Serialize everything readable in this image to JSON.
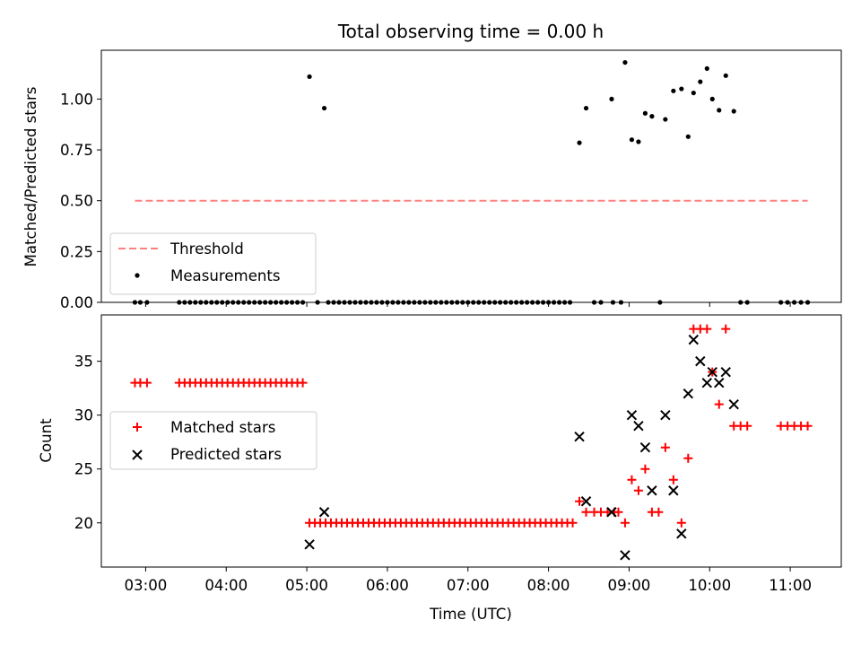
{
  "chart_data": [
    {
      "type": "scatter",
      "title": "Total observing time = 0.00 h",
      "xlabel": "",
      "ylabel": "Matched/Predicted stars",
      "xlim": [
        "02:27",
        "11:38"
      ],
      "ylim": [
        0,
        1.24
      ],
      "ytick_labels": [
        "0.00",
        "0.25",
        "0.50",
        "0.75",
        "1.00"
      ],
      "grid": false,
      "legend": "lower-left",
      "threshold": {
        "name": "Threshold",
        "y": 0.5,
        "x_start": "02:52",
        "x_end": "11:13",
        "color": "#ff8080",
        "style": "dashed"
      },
      "series": [
        {
          "name": "Measurements",
          "color": "#000000",
          "marker": "dot",
          "points": [
            [
              "02:52",
              0
            ],
            [
              "02:56",
              0
            ],
            [
              "03:01",
              0
            ],
            [
              "03:25",
              0
            ],
            [
              "03:29",
              0
            ],
            [
              "03:33",
              0
            ],
            [
              "03:37",
              0
            ],
            [
              "03:41",
              0
            ],
            [
              "03:45",
              0
            ],
            [
              "03:49",
              0
            ],
            [
              "03:53",
              0
            ],
            [
              "03:57",
              0
            ],
            [
              "04:01",
              0
            ],
            [
              "04:05",
              0
            ],
            [
              "04:09",
              0
            ],
            [
              "04:13",
              0
            ],
            [
              "04:17",
              0
            ],
            [
              "04:21",
              0
            ],
            [
              "04:25",
              0
            ],
            [
              "04:29",
              0
            ],
            [
              "04:33",
              0
            ],
            [
              "04:37",
              0
            ],
            [
              "04:41",
              0
            ],
            [
              "04:45",
              0
            ],
            [
              "04:49",
              0
            ],
            [
              "04:53",
              0
            ],
            [
              "04:57",
              0
            ],
            [
              "05:02",
              1.11
            ],
            [
              "05:13",
              0.955
            ],
            [
              "05:08",
              0
            ],
            [
              "05:16",
              0
            ],
            [
              "05:20",
              0
            ],
            [
              "05:24",
              0
            ],
            [
              "05:28",
              0
            ],
            [
              "05:32",
              0
            ],
            [
              "05:36",
              0
            ],
            [
              "05:40",
              0
            ],
            [
              "05:44",
              0
            ],
            [
              "05:48",
              0
            ],
            [
              "05:52",
              0
            ],
            [
              "05:56",
              0
            ],
            [
              "06:00",
              0
            ],
            [
              "06:04",
              0
            ],
            [
              "06:08",
              0
            ],
            [
              "06:12",
              0
            ],
            [
              "06:16",
              0
            ],
            [
              "06:20",
              0
            ],
            [
              "06:24",
              0
            ],
            [
              "06:28",
              0
            ],
            [
              "06:32",
              0
            ],
            [
              "06:36",
              0
            ],
            [
              "06:40",
              0
            ],
            [
              "06:44",
              0
            ],
            [
              "06:48",
              0
            ],
            [
              "06:52",
              0
            ],
            [
              "06:56",
              0
            ],
            [
              "07:00",
              0
            ],
            [
              "07:04",
              0
            ],
            [
              "07:08",
              0
            ],
            [
              "07:12",
              0
            ],
            [
              "07:16",
              0
            ],
            [
              "07:20",
              0
            ],
            [
              "07:24",
              0
            ],
            [
              "07:28",
              0
            ],
            [
              "07:32",
              0
            ],
            [
              "07:36",
              0
            ],
            [
              "07:40",
              0
            ],
            [
              "07:44",
              0
            ],
            [
              "07:48",
              0
            ],
            [
              "07:52",
              0
            ],
            [
              "07:56",
              0
            ],
            [
              "08:00",
              0
            ],
            [
              "08:04",
              0
            ],
            [
              "08:08",
              0
            ],
            [
              "08:12",
              0
            ],
            [
              "08:16",
              0
            ],
            [
              "08:23",
              0.785
            ],
            [
              "08:28",
              0.955
            ],
            [
              "08:34",
              0
            ],
            [
              "08:39",
              0
            ],
            [
              "08:48",
              0
            ],
            [
              "08:47",
              1.0
            ],
            [
              "08:54",
              0
            ],
            [
              "08:57",
              1.18
            ],
            [
              "09:02",
              0.8
            ],
            [
              "09:07",
              0.79
            ],
            [
              "09:12",
              0.93
            ],
            [
              "09:17",
              0.915
            ],
            [
              "09:23",
              0
            ],
            [
              "09:27",
              0.9
            ],
            [
              "09:33",
              1.04
            ],
            [
              "09:39",
              1.05
            ],
            [
              "09:44",
              0.815
            ],
            [
              "09:48",
              1.03
            ],
            [
              "09:53",
              1.085
            ],
            [
              "09:58",
              1.15
            ],
            [
              "10:02",
              1.0
            ],
            [
              "10:07",
              0.945
            ],
            [
              "10:12",
              1.115
            ],
            [
              "10:18",
              0.94
            ],
            [
              "10:23",
              0
            ],
            [
              "10:28",
              0
            ],
            [
              "10:53",
              0
            ],
            [
              "10:58",
              0
            ],
            [
              "11:03",
              0
            ],
            [
              "11:08",
              0
            ],
            [
              "11:13",
              0
            ]
          ]
        }
      ]
    },
    {
      "type": "scatter",
      "title": "",
      "xlabel": "Time (UTC)",
      "ylabel": "Count",
      "xlim": [
        "02:27",
        "11:38"
      ],
      "ylim": [
        15.9,
        39.3
      ],
      "xtick_labels": [
        "03:00",
        "04:00",
        "05:00",
        "06:00",
        "07:00",
        "08:00",
        "09:00",
        "10:00",
        "11:00"
      ],
      "ytick_labels": [
        "20",
        "25",
        "30",
        "35"
      ],
      "grid": false,
      "legend": "center-left",
      "series": [
        {
          "name": "Matched stars",
          "color": "#ff0000",
          "marker": "plus",
          "points": [
            [
              "02:52",
              33
            ],
            [
              "02:56",
              33
            ],
            [
              "03:01",
              33
            ],
            [
              "03:25",
              33
            ],
            [
              "03:29",
              33
            ],
            [
              "03:33",
              33
            ],
            [
              "03:37",
              33
            ],
            [
              "03:41",
              33
            ],
            [
              "03:45",
              33
            ],
            [
              "03:49",
              33
            ],
            [
              "03:53",
              33
            ],
            [
              "03:57",
              33
            ],
            [
              "04:01",
              33
            ],
            [
              "04:05",
              33
            ],
            [
              "04:09",
              33
            ],
            [
              "04:13",
              33
            ],
            [
              "04:17",
              33
            ],
            [
              "04:21",
              33
            ],
            [
              "04:25",
              33
            ],
            [
              "04:29",
              33
            ],
            [
              "04:33",
              33
            ],
            [
              "04:37",
              33
            ],
            [
              "04:41",
              33
            ],
            [
              "04:45",
              33
            ],
            [
              "04:49",
              33
            ],
            [
              "04:53",
              33
            ],
            [
              "04:57",
              33
            ],
            [
              "05:02",
              20
            ],
            [
              "05:06",
              20
            ],
            [
              "05:10",
              20
            ],
            [
              "05:14",
              20
            ],
            [
              "05:18",
              20
            ],
            [
              "05:22",
              20
            ],
            [
              "05:26",
              20
            ],
            [
              "05:30",
              20
            ],
            [
              "05:34",
              20
            ],
            [
              "05:38",
              20
            ],
            [
              "05:42",
              20
            ],
            [
              "05:46",
              20
            ],
            [
              "05:50",
              20
            ],
            [
              "05:54",
              20
            ],
            [
              "05:58",
              20
            ],
            [
              "06:02",
              20
            ],
            [
              "06:06",
              20
            ],
            [
              "06:10",
              20
            ],
            [
              "06:14",
              20
            ],
            [
              "06:18",
              20
            ],
            [
              "06:22",
              20
            ],
            [
              "06:26",
              20
            ],
            [
              "06:30",
              20
            ],
            [
              "06:34",
              20
            ],
            [
              "06:38",
              20
            ],
            [
              "06:42",
              20
            ],
            [
              "06:46",
              20
            ],
            [
              "06:50",
              20
            ],
            [
              "06:54",
              20
            ],
            [
              "06:58",
              20
            ],
            [
              "07:02",
              20
            ],
            [
              "07:06",
              20
            ],
            [
              "07:10",
              20
            ],
            [
              "07:14",
              20
            ],
            [
              "07:18",
              20
            ],
            [
              "07:22",
              20
            ],
            [
              "07:26",
              20
            ],
            [
              "07:30",
              20
            ],
            [
              "07:34",
              20
            ],
            [
              "07:38",
              20
            ],
            [
              "07:42",
              20
            ],
            [
              "07:46",
              20
            ],
            [
              "07:50",
              20
            ],
            [
              "07:54",
              20
            ],
            [
              "07:58",
              20
            ],
            [
              "08:02",
              20
            ],
            [
              "08:06",
              20
            ],
            [
              "08:10",
              20
            ],
            [
              "08:14",
              20
            ],
            [
              "08:18",
              20
            ],
            [
              "08:23",
              22
            ],
            [
              "08:28",
              21
            ],
            [
              "08:34",
              21
            ],
            [
              "08:39",
              21
            ],
            [
              "08:44",
              21
            ],
            [
              "08:49",
              21
            ],
            [
              "08:52",
              21
            ],
            [
              "08:57",
              20
            ],
            [
              "09:02",
              24
            ],
            [
              "09:07",
              23
            ],
            [
              "09:12",
              25
            ],
            [
              "09:17",
              21
            ],
            [
              "09:22",
              21
            ],
            [
              "09:27",
              27
            ],
            [
              "09:33",
              24
            ],
            [
              "09:39",
              20
            ],
            [
              "09:44",
              26
            ],
            [
              "09:48",
              38
            ],
            [
              "09:53",
              38
            ],
            [
              "09:58",
              38
            ],
            [
              "10:02",
              34
            ],
            [
              "10:07",
              31
            ],
            [
              "10:12",
              38
            ],
            [
              "10:18",
              29
            ],
            [
              "10:23",
              29
            ],
            [
              "10:28",
              29
            ],
            [
              "10:53",
              29
            ],
            [
              "10:58",
              29
            ],
            [
              "11:03",
              29
            ],
            [
              "11:08",
              29
            ],
            [
              "11:13",
              29
            ]
          ]
        },
        {
          "name": "Predicted stars",
          "color": "#000000",
          "marker": "x",
          "points": [
            [
              "05:02",
              18
            ],
            [
              "05:13",
              21
            ],
            [
              "08:23",
              28
            ],
            [
              "08:28",
              22
            ],
            [
              "08:47",
              21
            ],
            [
              "08:57",
              17
            ],
            [
              "09:02",
              30
            ],
            [
              "09:07",
              29
            ],
            [
              "09:12",
              27
            ],
            [
              "09:17",
              23
            ],
            [
              "09:27",
              30
            ],
            [
              "09:33",
              23
            ],
            [
              "09:39",
              19
            ],
            [
              "09:44",
              32
            ],
            [
              "09:48",
              37
            ],
            [
              "09:53",
              35
            ],
            [
              "09:58",
              33
            ],
            [
              "10:02",
              34
            ],
            [
              "10:07",
              33
            ],
            [
              "10:12",
              34
            ],
            [
              "10:18",
              31
            ]
          ]
        }
      ]
    }
  ]
}
